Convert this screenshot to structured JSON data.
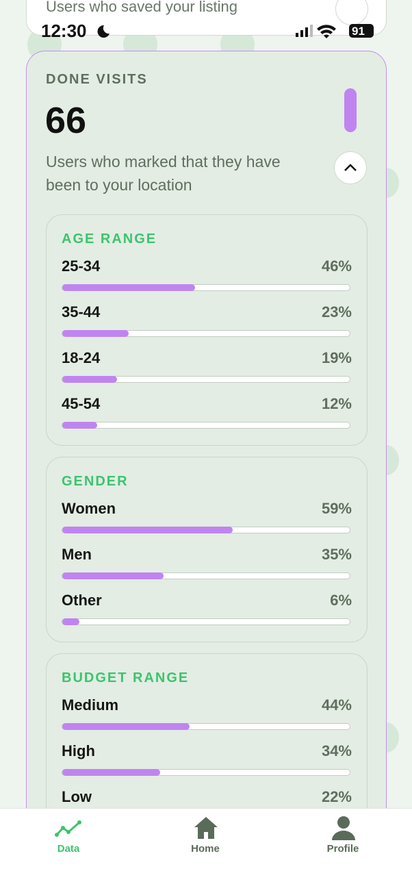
{
  "status_bar": {
    "time": "12:30",
    "battery": "91"
  },
  "previous_card": {
    "subtitle": "Users who saved your listing"
  },
  "card": {
    "title": "DONE VISITS",
    "count": "66",
    "description": "Users who marked that they have been to your location",
    "sections": [
      {
        "title": "AGE RANGE",
        "rows": [
          {
            "label": "25-34",
            "value": 46,
            "value_label": "46%"
          },
          {
            "label": "35-44",
            "value": 23,
            "value_label": "23%"
          },
          {
            "label": "18-24",
            "value": 19,
            "value_label": "19%"
          },
          {
            "label": "45-54",
            "value": 12,
            "value_label": "12%"
          }
        ]
      },
      {
        "title": "GENDER",
        "rows": [
          {
            "label": "Women",
            "value": 59,
            "value_label": "59%"
          },
          {
            "label": "Men",
            "value": 35,
            "value_label": "35%"
          },
          {
            "label": "Other",
            "value": 6,
            "value_label": "6%"
          }
        ]
      },
      {
        "title": "BUDGET RANGE",
        "rows": [
          {
            "label": "Medium",
            "value": 44,
            "value_label": "44%"
          },
          {
            "label": "High",
            "value": 34,
            "value_label": "34%"
          },
          {
            "label": "Low",
            "value": 22,
            "value_label": "22%"
          }
        ]
      }
    ]
  },
  "nav": {
    "items": [
      {
        "label": "Data"
      },
      {
        "label": "Home"
      },
      {
        "label": "Profile"
      }
    ]
  }
}
